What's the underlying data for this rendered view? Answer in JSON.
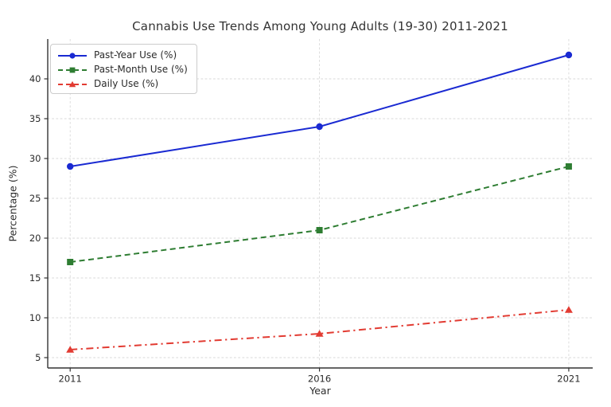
{
  "page": {
    "background": "#ffffff"
  },
  "chart_data": {
    "type": "line",
    "title": "Cannabis Use Trends Among Young Adults (19-30) 2011-2021",
    "xlabel": "Year",
    "ylabel": "Percentage (%)",
    "x": [
      2011,
      2016,
      2021
    ],
    "series": [
      {
        "name": "Past-Year Use (%)",
        "values": [
          29,
          34,
          43
        ],
        "color": "#1a2ad2",
        "line_style": "solid",
        "marker": "circle"
      },
      {
        "name": "Past-Month Use (%)",
        "values": [
          17,
          21,
          29
        ],
        "color": "#2e7d32",
        "line_style": "dashed",
        "marker": "square"
      },
      {
        "name": "Daily Use (%)",
        "values": [
          6,
          8,
          11
        ],
        "color": "#e23b32",
        "line_style": "dashdot",
        "marker": "triangle"
      }
    ],
    "xticks": [
      2011,
      2016,
      2021
    ],
    "yticks": [
      5,
      10,
      15,
      20,
      25,
      30,
      35,
      40
    ],
    "xlim": [
      2010.55,
      2021.48
    ],
    "ylim": [
      3.7,
      45.0
    ],
    "grid": true,
    "legend_position": "upper left",
    "grid_color": "#d9d9d9",
    "axis_color": "#333333",
    "tick_text_color": "#2b2b2b"
  }
}
